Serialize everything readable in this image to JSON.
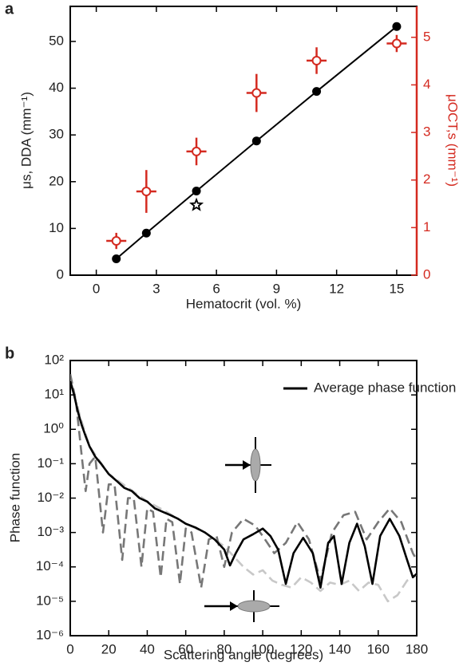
{
  "chart_data": [
    {
      "type": "line",
      "panel_label": "a",
      "xlabel": "Hematocrit (vol. %)",
      "ylabel": "μs, DDA (mm⁻¹)",
      "y2label": "μOCT,s (mm⁻¹)",
      "xlim": [
        -1.3,
        16
      ],
      "xticks": [
        0,
        3,
        6,
        9,
        12,
        15
      ],
      "ylim": [
        0,
        57.5
      ],
      "yticks": [
        0,
        10,
        20,
        30,
        40,
        50
      ],
      "y2lim": [
        0,
        5.65
      ],
      "y2ticks": [
        0,
        1,
        2,
        3,
        4,
        5
      ],
      "y2color": "#d42a20",
      "series": [
        {
          "color": "#000000",
          "marker": "circle",
          "line": true,
          "x": [
            1,
            2.5,
            5,
            8,
            11,
            15
          ],
          "values": [
            3.5,
            9,
            18,
            28.7,
            39.3,
            53.2
          ]
        },
        {
          "color": "#000000",
          "marker": "star",
          "line": false,
          "x": [
            5
          ],
          "values": [
            15
          ]
        },
        {
          "color": "#d42a20",
          "marker": "open-circle",
          "line": false,
          "axis": "y2",
          "x": [
            1,
            2.5,
            5,
            8,
            11,
            15
          ],
          "values": [
            0.72,
            1.76,
            2.6,
            3.83,
            4.51,
            4.87
          ],
          "yerr": [
            0.17,
            0.45,
            0.29,
            0.4,
            0.28,
            0.18
          ],
          "xerr": [
            0.5,
            0.5,
            0.5,
            0.5,
            0.5,
            0.5
          ]
        }
      ]
    },
    {
      "type": "line",
      "panel_label": "b",
      "ylog": true,
      "xlabel": "Scattering angle (degrees)",
      "ylabel": "Phase function",
      "xlim": [
        0,
        180
      ],
      "xticks": [
        0,
        20,
        40,
        60,
        80,
        100,
        120,
        140,
        160,
        180
      ],
      "ylim": [
        1e-06,
        100
      ],
      "yticks": [
        {
          "value": 100,
          "label": "10²"
        },
        {
          "value": 10,
          "label": "10¹"
        },
        {
          "value": 1,
          "label": "10⁰"
        },
        {
          "value": 0.1,
          "label": "10⁻¹"
        },
        {
          "value": 0.01,
          "label": "10⁻²"
        },
        {
          "value": 0.001,
          "label": "10⁻³"
        },
        {
          "value": 0.0001,
          "label": "10⁻⁴"
        },
        {
          "value": 1e-05,
          "label": "10⁻⁵"
        },
        {
          "value": 1e-06,
          "label": "10⁻⁶"
        }
      ],
      "legend": "upper right",
      "series": [
        {
          "color": "#c8c8c8",
          "dash": "dashed",
          "line": true,
          "x": [
            0,
            5,
            10,
            20,
            30,
            40,
            50,
            60,
            70,
            80,
            85,
            90,
            95,
            100,
            105,
            110,
            115,
            120,
            125,
            130,
            135,
            140,
            145,
            150,
            155,
            160,
            165,
            170,
            175,
            180
          ],
          "values": [
            30,
            2.5,
            0.32,
            0.05,
            0.02,
            0.008,
            0.004,
            0.0018,
            0.001,
            0.0004,
            0.0002,
            0.0001,
            6e-05,
            8e-05,
            4e-05,
            3e-05,
            2.5e-05,
            5e-05,
            3.5e-05,
            2e-05,
            3.5e-05,
            3e-05,
            4e-05,
            2e-05,
            3.5e-05,
            3e-05,
            1e-05,
            1.5e-05,
            4e-05,
            6e-05
          ]
        },
        {
          "color": "#777777",
          "dash": "dashed",
          "line": true,
          "x": [
            0,
            3,
            6,
            8,
            10,
            13,
            17,
            20,
            23,
            27,
            30,
            33,
            37,
            40,
            43,
            47,
            50,
            53,
            57,
            60,
            63,
            68,
            72,
            76,
            80,
            84,
            90,
            96,
            100,
            106,
            112,
            118,
            124,
            130,
            136,
            142,
            148,
            154,
            160,
            166,
            172,
            178,
            180
          ],
          "values": [
            40,
            6.3,
            0.16,
            0.016,
            0.1,
            0.16,
            0.001,
            0.025,
            0.025,
            0.00016,
            0.01,
            0.01,
            0.0001,
            0.005,
            0.004,
            5e-05,
            0.0025,
            0.002,
            3.2e-05,
            0.0013,
            0.001,
            2.5e-05,
            0.00063,
            0.00079,
            0.0001,
            0.001,
            0.0025,
            0.0016,
            0.00079,
            0.00025,
            0.0005,
            0.002,
            0.00063,
            4e-05,
            0.001,
            0.0032,
            0.004,
            0.00063,
            0.002,
            0.005,
            0.002,
            0.00025,
            0.00016
          ]
        },
        {
          "name": "Average phase function",
          "color": "#000000",
          "dash": "solid",
          "line": true,
          "x": [
            0,
            2,
            4,
            6,
            8,
            10,
            13,
            16,
            20,
            24,
            28,
            32,
            36,
            40,
            44,
            48,
            52,
            56,
            60,
            65,
            70,
            75,
            80,
            83,
            86,
            90,
            95,
            100,
            104,
            108,
            112,
            116,
            121,
            126,
            130,
            134,
            137,
            141,
            145,
            149,
            153,
            157,
            161,
            166,
            171,
            175,
            178,
            180
          ],
          "values": [
            25,
            10,
            3.2,
            1.3,
            0.63,
            0.32,
            0.16,
            0.1,
            0.05,
            0.032,
            0.02,
            0.016,
            0.01,
            0.0079,
            0.005,
            0.004,
            0.0032,
            0.0025,
            0.0018,
            0.0014,
            0.001,
            0.00063,
            0.00032,
            0.00011,
            0.00025,
            0.00063,
            0.00089,
            0.0013,
            0.00079,
            0.00032,
            3.2e-05,
            0.00025,
            0.0007,
            0.00025,
            2.5e-05,
            0.0005,
            0.00079,
            3.2e-05,
            0.0005,
            0.0018,
            0.0004,
            3.2e-05,
            0.00079,
            0.0025,
            0.00079,
            0.00016,
            5e-05,
            6.3e-05
          ]
        }
      ]
    }
  ]
}
